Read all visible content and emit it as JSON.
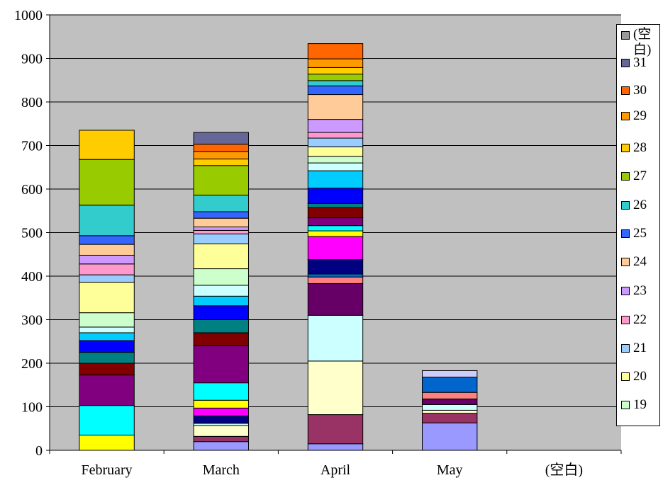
{
  "chart_data": {
    "type": "bar",
    "stacked": true,
    "categories": [
      "February",
      "March",
      "April",
      "May",
      "(空白)"
    ],
    "ylim": [
      0,
      1000
    ],
    "yticks": [
      0,
      100,
      200,
      300,
      400,
      500,
      600,
      700,
      800,
      900,
      1000
    ],
    "legend_position": "right",
    "legend_entries": [
      {
        "label": "(空白)",
        "color": "#999999"
      },
      {
        "label": "31",
        "color": "#666699"
      },
      {
        "label": "30",
        "color": "#FF6600"
      },
      {
        "label": "29",
        "color": "#FF9900"
      },
      {
        "label": "28",
        "color": "#FFCC00"
      },
      {
        "label": "27",
        "color": "#99CC00"
      },
      {
        "label": "26",
        "color": "#33CCCC"
      },
      {
        "label": "25",
        "color": "#3366FF"
      },
      {
        "label": "24",
        "color": "#FFCC99"
      },
      {
        "label": "23",
        "color": "#CC99FF"
      },
      {
        "label": "22",
        "color": "#FF99CC"
      },
      {
        "label": "21",
        "color": "#99CCFF"
      },
      {
        "label": "20",
        "color": "#FFFF99"
      },
      {
        "label": "19",
        "color": "#CCFFCC"
      }
    ],
    "bars": [
      {
        "category": "February",
        "segments": [
          {
            "color": "#FFFF00",
            "value": 35
          },
          {
            "color": "#00FFFF",
            "value": 68
          },
          {
            "color": "#800080",
            "value": 70
          },
          {
            "color": "#800000",
            "value": 27
          },
          {
            "color": "#008080",
            "value": 25
          },
          {
            "color": "#0000FF",
            "value": 27
          },
          {
            "color": "#00CCFF",
            "value": 18
          },
          {
            "color": "#CCFFFF",
            "value": 13
          },
          {
            "color": "#CCFFCC",
            "value": 33
          },
          {
            "color": "#FFFF99",
            "value": 70
          },
          {
            "color": "#99CCFF",
            "value": 17
          },
          {
            "color": "#FF99CC",
            "value": 25
          },
          {
            "color": "#CC99FF",
            "value": 20
          },
          {
            "color": "#FFCC99",
            "value": 25
          },
          {
            "color": "#3366FF",
            "value": 20
          },
          {
            "color": "#33CCCC",
            "value": 70
          },
          {
            "color": "#99CC00",
            "value": 105
          },
          {
            "color": "#FFCC00",
            "value": 67
          }
        ]
      },
      {
        "category": "March",
        "segments": [
          {
            "color": "#9999FF",
            "value": 20
          },
          {
            "color": "#993366",
            "value": 12
          },
          {
            "color": "#FFFFCC",
            "value": 25
          },
          {
            "color": "#CCFFFF",
            "value": 5
          },
          {
            "color": "#000080",
            "value": 17
          },
          {
            "color": "#FF00FF",
            "value": 18
          },
          {
            "color": "#FFFF00",
            "value": 18
          },
          {
            "color": "#00FFFF",
            "value": 40
          },
          {
            "color": "#800080",
            "value": 85
          },
          {
            "color": "#800000",
            "value": 30
          },
          {
            "color": "#008080",
            "value": 30
          },
          {
            "color": "#0000FF",
            "value": 32
          },
          {
            "color": "#00CCFF",
            "value": 22
          },
          {
            "color": "#CCFFFF",
            "value": 25
          },
          {
            "color": "#CCFFCC",
            "value": 38
          },
          {
            "color": "#FFFF99",
            "value": 57
          },
          {
            "color": "#99CCFF",
            "value": 23
          },
          {
            "color": "#FF99CC",
            "value": 8
          },
          {
            "color": "#CC99FF",
            "value": 8
          },
          {
            "color": "#FFCC99",
            "value": 20
          },
          {
            "color": "#3366FF",
            "value": 15
          },
          {
            "color": "#33CCCC",
            "value": 38
          },
          {
            "color": "#99CC00",
            "value": 68
          },
          {
            "color": "#FFCC00",
            "value": 15
          },
          {
            "color": "#FF9900",
            "value": 17
          },
          {
            "color": "#FF6600",
            "value": 17
          },
          {
            "color": "#666699",
            "value": 27
          }
        ]
      },
      {
        "category": "April",
        "segments": [
          {
            "color": "#9999FF",
            "value": 15
          },
          {
            "color": "#993366",
            "value": 67
          },
          {
            "color": "#FFFFCC",
            "value": 123
          },
          {
            "color": "#CCFFFF",
            "value": 105
          },
          {
            "color": "#660066",
            "value": 73
          },
          {
            "color": "#FF8080",
            "value": 15
          },
          {
            "color": "#0066CC",
            "value": 7
          },
          {
            "color": "#000080",
            "value": 33
          },
          {
            "color": "#FF00FF",
            "value": 53
          },
          {
            "color": "#FFFF00",
            "value": 13
          },
          {
            "color": "#00FFFF",
            "value": 12
          },
          {
            "color": "#800080",
            "value": 18
          },
          {
            "color": "#800000",
            "value": 23
          },
          {
            "color": "#008080",
            "value": 10
          },
          {
            "color": "#0000FF",
            "value": 35
          },
          {
            "color": "#00CCFF",
            "value": 40
          },
          {
            "color": "#CCFFFF",
            "value": 18
          },
          {
            "color": "#CCFFCC",
            "value": 15
          },
          {
            "color": "#FFFF99",
            "value": 22
          },
          {
            "color": "#99CCFF",
            "value": 20
          },
          {
            "color": "#FF99CC",
            "value": 13
          },
          {
            "color": "#CC99FF",
            "value": 30
          },
          {
            "color": "#FFCC99",
            "value": 57
          },
          {
            "color": "#3366FF",
            "value": 20
          },
          {
            "color": "#33CCCC",
            "value": 12
          },
          {
            "color": "#99CC00",
            "value": 15
          },
          {
            "color": "#FFCC00",
            "value": 15
          },
          {
            "color": "#FF9900",
            "value": 20
          },
          {
            "color": "#FF6600",
            "value": 35
          }
        ]
      },
      {
        "category": "May",
        "segments": [
          {
            "color": "#9999FF",
            "value": 63
          },
          {
            "color": "#993366",
            "value": 22
          },
          {
            "color": "#FFFFCC",
            "value": 7
          },
          {
            "color": "#CCFFFF",
            "value": 13
          },
          {
            "color": "#660066",
            "value": 13
          },
          {
            "color": "#FF8080",
            "value": 15
          },
          {
            "color": "#0066CC",
            "value": 35
          },
          {
            "color": "#CCCCFF",
            "value": 15
          }
        ]
      },
      {
        "category": "(空白)",
        "segments": []
      }
    ]
  }
}
